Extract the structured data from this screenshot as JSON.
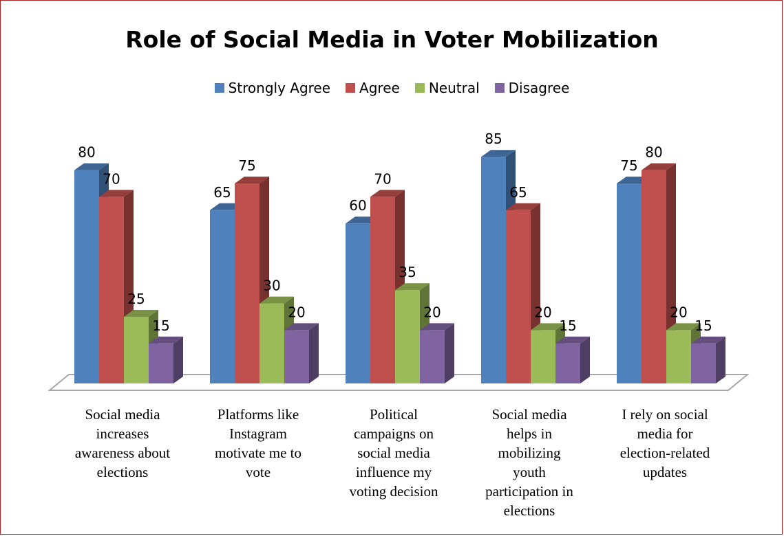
{
  "chart_data": {
    "type": "bar",
    "title": "Role of Social Media in Voter Mobilization",
    "categories": [
      "Social media increases awareness about elections",
      "Platforms like Instagram motivate me to vote",
      "Political campaigns on social media influence my voting decision",
      "Social media helps in mobilizing youth participation in elections",
      "I rely on social media for election-related updates"
    ],
    "category_lines": [
      [
        "Social media",
        "increases",
        "awareness about",
        "elections"
      ],
      [
        "Platforms like",
        "Instagram",
        "motivate me to",
        "vote"
      ],
      [
        "Political",
        "campaigns on",
        "social media",
        "influence my",
        "voting decision"
      ],
      [
        "Social media",
        "helps in",
        "mobilizing",
        "youth",
        "participation in",
        "elections"
      ],
      [
        "I rely on social",
        "media for",
        "election-related",
        "updates"
      ]
    ],
    "series": [
      {
        "name": "Strongly Agree",
        "color": "#4f81bd",
        "values": [
          80,
          65,
          60,
          85,
          75
        ]
      },
      {
        "name": "Agree",
        "color": "#c0504d",
        "values": [
          70,
          75,
          70,
          65,
          80
        ]
      },
      {
        "name": "Neutral",
        "color": "#9bbb59",
        "values": [
          25,
          30,
          35,
          20,
          20
        ]
      },
      {
        "name": "Disagree",
        "color": "#8064a2",
        "values": [
          15,
          20,
          20,
          15,
          15
        ]
      }
    ],
    "ylim": [
      0,
      90
    ],
    "legend_position": "top",
    "grid": false,
    "style": "3d-clustered-column"
  }
}
